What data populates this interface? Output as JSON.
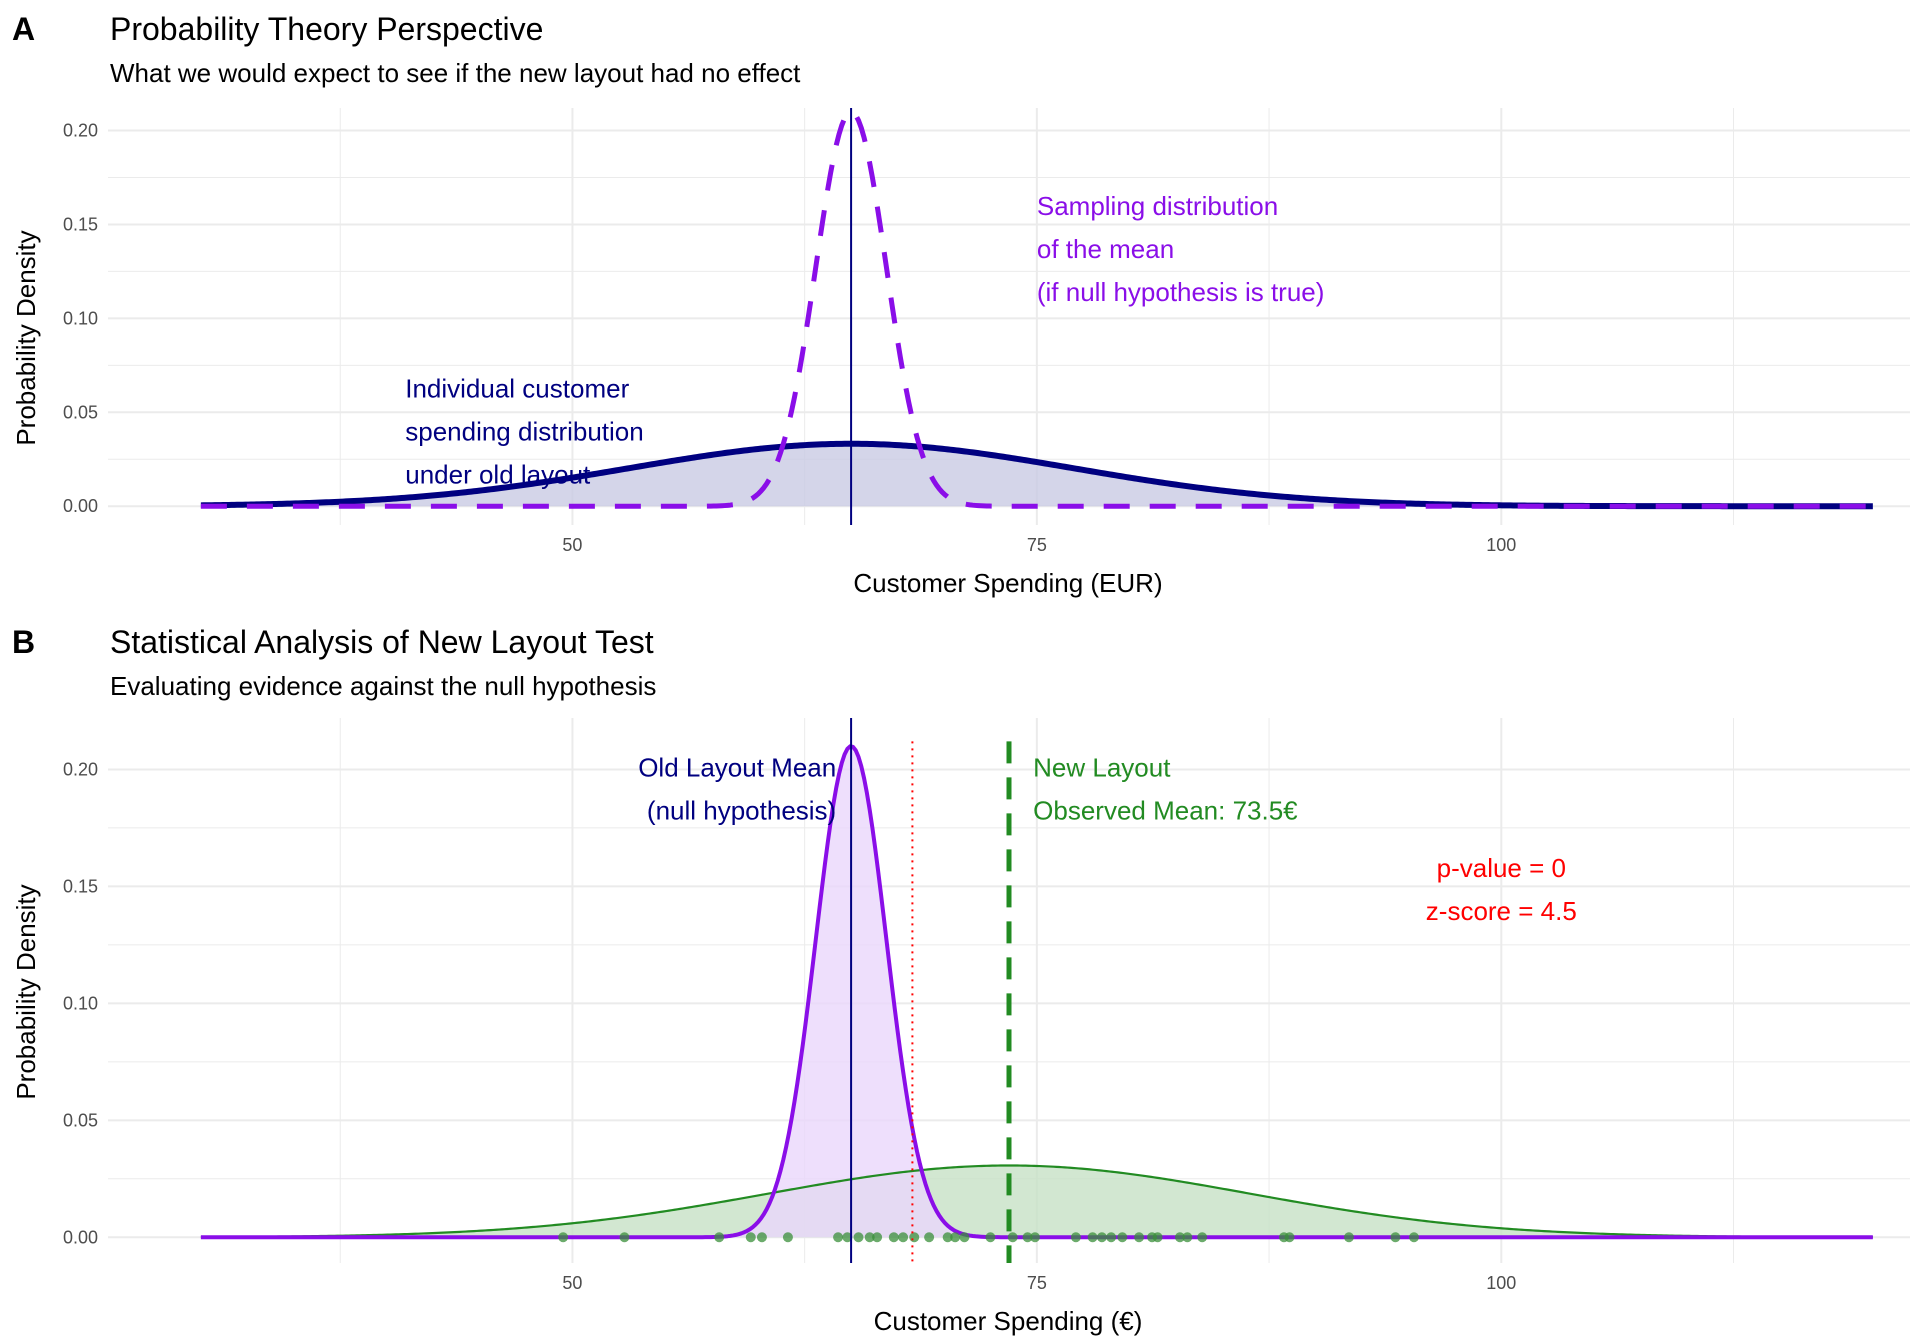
{
  "chart_data": [
    {
      "tag": "A",
      "type": "area",
      "title": "Probability Theory Perspective",
      "subtitle": "What we would expect to see if the new layout had no effect",
      "xlabel": "Customer Spending (EUR)",
      "ylabel": "Probability Density",
      "xlim": [
        25,
        122
      ],
      "ylim": [
        -0.01,
        0.212
      ],
      "x_ticks": [
        50,
        75,
        100
      ],
      "x_tick_labels": [
        "50",
        "75",
        "100"
      ],
      "y_ticks": [
        0,
        0.05,
        0.1,
        0.15,
        0.2
      ],
      "y_tick_labels": [
        "0.00",
        "0.05",
        "0.10",
        "0.15",
        "0.20"
      ],
      "grid": true,
      "series": [
        {
          "kind": "normal",
          "mean": 65,
          "sd": 12,
          "x_range": [
            30,
            120
          ],
          "style": "solid",
          "fill": "#c9cbe4",
          "color": "#000080"
        },
        {
          "kind": "normal",
          "mean": 65,
          "sd": 1.9,
          "x_range": [
            30,
            120
          ],
          "style": "dashed",
          "color": "#8a0ee8"
        }
      ],
      "vlines": [
        {
          "x": 65,
          "color": "#000080",
          "style": "solid"
        }
      ],
      "annotations": [
        {
          "lines": [
            "Sampling distribution",
            "of the mean",
            "(if null hypothesis is true)"
          ],
          "x": 75,
          "y": 0.155,
          "color": "#8a0ee8",
          "anchor": "start"
        },
        {
          "lines": [
            "Individual customer",
            "spending distribution",
            "under old layout"
          ],
          "x": 41,
          "y": 0.058,
          "color": "#000080",
          "anchor": "start"
        }
      ]
    },
    {
      "tag": "B",
      "type": "area",
      "title": "Statistical Analysis of New Layout Test",
      "subtitle": "Evaluating evidence against the null hypothesis",
      "xlabel": "Customer Spending (€)",
      "ylabel": "Probability Density",
      "xlim": [
        25,
        122
      ],
      "ylim": [
        -0.011,
        0.222
      ],
      "x_ticks": [
        50,
        75,
        100
      ],
      "x_tick_labels": [
        "50",
        "75",
        "100"
      ],
      "y_ticks": [
        0,
        0.05,
        0.1,
        0.15,
        0.2
      ],
      "y_tick_labels": [
        "0.00",
        "0.05",
        "0.10",
        "0.15",
        "0.20"
      ],
      "grid": true,
      "series": [
        {
          "kind": "normal",
          "mean": 73.5,
          "sd": 13,
          "x_range": [
            30,
            120
          ],
          "style": "solid",
          "fill": "#c7e1c5",
          "color": "#228b22"
        },
        {
          "kind": "normal",
          "mean": 65,
          "sd": 1.9,
          "x_range": [
            30,
            120
          ],
          "style": "solid",
          "fill": "#ead7fb",
          "color": "#8a0ee8"
        }
      ],
      "points": {
        "color": "#3a8f3a",
        "y": 0,
        "x": [
          49.5,
          52.8,
          57.9,
          59.6,
          60.2,
          61.6,
          64.3,
          64.8,
          65.4,
          66.0,
          66.4,
          67.3,
          67.8,
          68.4,
          69.2,
          70.2,
          70.6,
          71.1,
          72.5,
          73.7,
          74.5,
          74.9,
          77.1,
          78.0,
          78.5,
          79.0,
          79.6,
          80.5,
          81.2,
          81.5,
          82.7,
          83.1,
          83.9,
          88.3,
          88.6,
          91.8,
          94.3,
          95.3
        ]
      },
      "vlines": [
        {
          "x": 65,
          "color": "#000080",
          "style": "solid"
        },
        {
          "x": 68.3,
          "color": "#ff0000",
          "style": "dotted"
        },
        {
          "x": 73.5,
          "color": "#228b22",
          "style": "dashed"
        }
      ],
      "annotations": [
        {
          "lines": [
            "Old Layout Mean",
            "(null hypothesis)"
          ],
          "x": 64.2,
          "y": 0.197,
          "color": "#000080",
          "anchor": "end"
        },
        {
          "lines": [
            "New Layout",
            "Observed Mean: 73.5€"
          ],
          "x": 74.8,
          "y": 0.197,
          "color": "#228b22",
          "anchor": "start"
        },
        {
          "lines": [
            "p-value = 0",
            "z-score = 4.5"
          ],
          "x": 100,
          "y": 0.154,
          "color": "#ff0000",
          "anchor": "middle"
        }
      ]
    }
  ]
}
